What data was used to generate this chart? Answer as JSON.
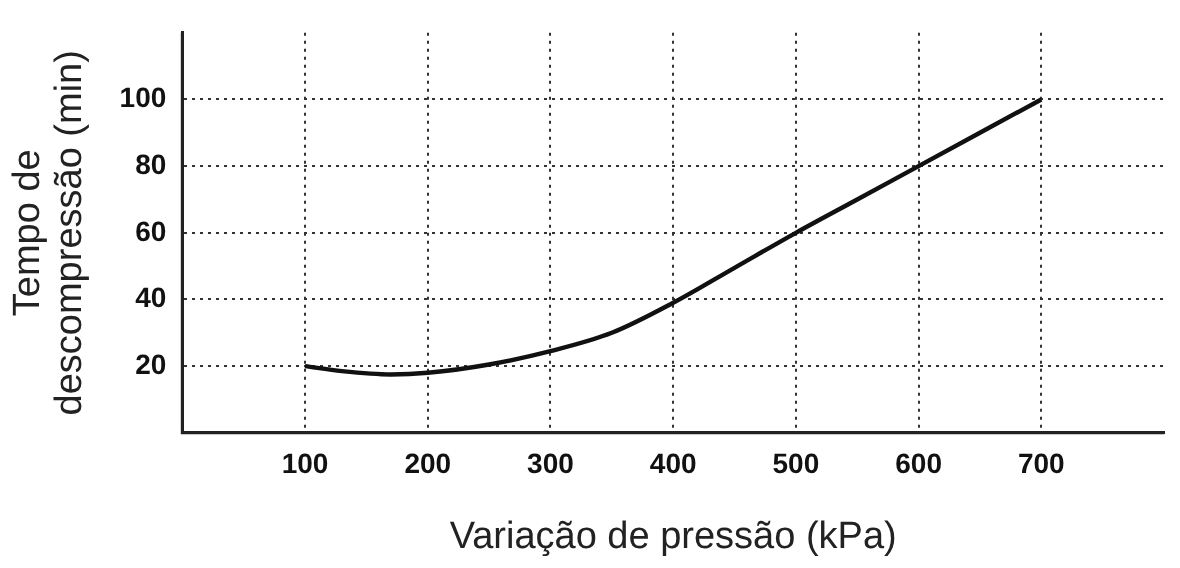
{
  "chart_data": {
    "type": "line",
    "xlabel": "Variação de pressão (kPa)",
    "ylabel": "Tempo de descompressão (min)",
    "x": [
      100,
      130,
      170,
      200,
      250,
      300,
      350,
      400,
      450,
      500,
      550,
      600,
      650,
      700
    ],
    "series": [
      {
        "color": "#111111",
        "values": [
          20,
          18.5,
          17.5,
          18,
          20.5,
          24.5,
          30,
          39,
          49.5,
          60,
          70,
          80,
          90,
          100
        ]
      }
    ],
    "xlim": [
      0,
      800
    ],
    "xticks": [
      100,
      200,
      300,
      400,
      500,
      600,
      700
    ],
    "ylim": [
      0,
      120
    ],
    "yticks": [
      20,
      40,
      60,
      80,
      100
    ],
    "grid": true,
    "legend": false,
    "marker": "none",
    "line_style": "solid"
  }
}
